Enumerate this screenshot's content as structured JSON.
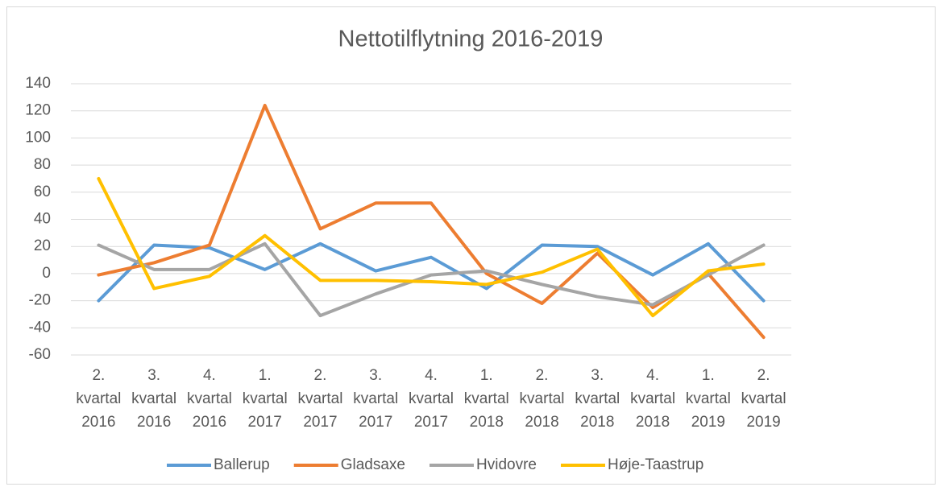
{
  "chart_data": {
    "type": "line",
    "title": "Nettotilflytning 2016-2019",
    "categories": [
      "2. kvartal 2016",
      "3. kvartal 2016",
      "4. kvartal 2016",
      "1. kvartal 2017",
      "2. kvartal 2017",
      "3. kvartal 2017",
      "4. kvartal 2017",
      "1. kvartal 2018",
      "2. kvartal 2018",
      "3. kvartal 2018",
      "4. kvartal 2018",
      "1. kvartal 2019",
      "2. kvartal 2019"
    ],
    "series": [
      {
        "name": "Ballerup",
        "color": "#5b9bd5",
        "values": [
          -20,
          21,
          19,
          3,
          22,
          2,
          12,
          -11,
          21,
          20,
          -1,
          22,
          -20
        ]
      },
      {
        "name": "Gladsaxe",
        "color": "#ed7d31",
        "values": [
          -1,
          8,
          21,
          124,
          33,
          52,
          52,
          0,
          -22,
          15,
          -25,
          0,
          -47
        ]
      },
      {
        "name": "Hvidovre",
        "color": "#a5a5a5",
        "values": [
          21,
          3,
          3,
          22,
          -31,
          -15,
          -1,
          2,
          -8,
          -17,
          -23,
          -1,
          21
        ]
      },
      {
        "name": "Høje-Taastrup",
        "color": "#ffc000",
        "values": [
          70,
          -11,
          -2,
          28,
          -5,
          -5,
          -6,
          -8,
          1,
          18,
          -31,
          2,
          7
        ]
      }
    ],
    "ylim": [
      -60,
      140
    ],
    "yticks": [
      -60,
      -40,
      -20,
      0,
      20,
      40,
      60,
      80,
      100,
      120,
      140
    ],
    "grid": true,
    "legend": "bottom"
  }
}
